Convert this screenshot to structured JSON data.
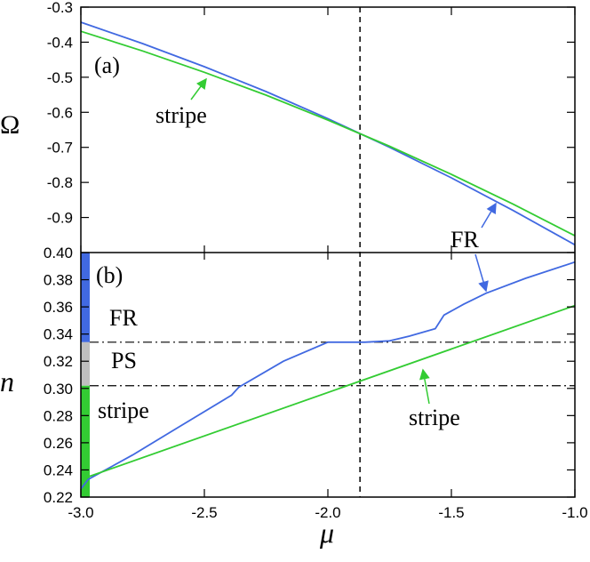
{
  "chart_data": [
    {
      "panel_label": "(a)",
      "type": "line",
      "ylabel": "Ω",
      "xlim": [
        -3.0,
        -1.0
      ],
      "ylim": [
        -1.0,
        -0.3
      ],
      "yticks": [
        "-0.3",
        "-0.4",
        "-0.5",
        "-0.6",
        "-0.7",
        "-0.8",
        "-0.9"
      ],
      "grid": false,
      "series": [
        {
          "color": "#4169e1",
          "x": [
            -3.0,
            -2.75,
            -2.5,
            -2.25,
            -2.0,
            -1.75,
            -1.5,
            -1.25,
            -1.0
          ],
          "y": [
            -0.343,
            -0.404,
            -0.47,
            -0.541,
            -0.618,
            -0.7,
            -0.787,
            -0.88,
            -0.978
          ]
        },
        {
          "color": "#33cc33",
          "x": [
            -3.0,
            -2.75,
            -2.5,
            -2.25,
            -2.0,
            -1.75,
            -1.5,
            -1.25,
            -1.0
          ],
          "y": [
            -0.369,
            -0.425,
            -0.486,
            -0.551,
            -0.622,
            -0.697,
            -0.777,
            -0.862,
            -0.952
          ]
        }
      ],
      "vline_x": -1.87,
      "annotations": [
        {
          "text": "stripe",
          "color": "#33cc33"
        },
        {
          "text": "FR",
          "color": "#4169e1"
        }
      ]
    },
    {
      "panel_label": "(b)",
      "type": "line",
      "xlabel": "μ",
      "ylabel": "n",
      "xlim": [
        -3.0,
        -1.0
      ],
      "ylim": [
        0.22,
        0.4
      ],
      "xticks": [
        "-3.0",
        "-2.5",
        "-2.0",
        "-1.5",
        "-1.0"
      ],
      "yticks": [
        "0.40",
        "0.38",
        "0.36",
        "0.34",
        "0.32",
        "0.30",
        "0.28",
        "0.26",
        "0.24",
        "0.22"
      ],
      "grid": false,
      "series": [
        {
          "color": "#4169e1",
          "x": [
            -3.0,
            -2.97,
            -2.79,
            -2.6,
            -2.39,
            -2.36,
            -2.18,
            -2.0,
            -1.85,
            -1.75,
            -1.67,
            -1.565,
            -1.53,
            -1.45,
            -1.36,
            -1.2,
            -1.0
          ],
          "y": [
            0.226,
            0.233,
            0.251,
            0.272,
            0.295,
            0.301,
            0.32,
            0.334,
            0.334,
            0.335,
            0.3385,
            0.344,
            0.354,
            0.362,
            0.37,
            0.381,
            0.393
          ]
        },
        {
          "color": "#33cc33",
          "x": [
            -3.0,
            -1.0
          ],
          "y": [
            0.233,
            0.361
          ]
        }
      ],
      "vline_x": -1.87,
      "hlines_y": [
        0.334,
        0.302
      ],
      "regions": [
        {
          "label": "FR",
          "from": 0.334,
          "to": 0.4,
          "color": "#4169e1"
        },
        {
          "label": "PS",
          "from": 0.302,
          "to": 0.334,
          "color": "#bfbfbf"
        },
        {
          "label": "stripe",
          "from": 0.22,
          "to": 0.302,
          "color": "#33cc33"
        }
      ],
      "annotations": [
        {
          "text": "stripe",
          "color": "#33cc33"
        }
      ]
    }
  ]
}
